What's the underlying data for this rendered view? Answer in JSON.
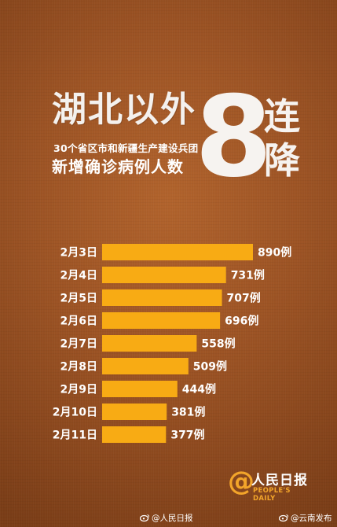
{
  "headline": "湖北以外",
  "subline1": "30个省区市和新疆生产建设兵团",
  "subline2": "新增确诊病例人数",
  "big_number": "8",
  "big_suffix_1": "连",
  "big_suffix_2": "降",
  "brand": {
    "symbol": "@",
    "name_cn": "人民日报",
    "name_en": "PEOPLE'S DAILY"
  },
  "footer": {
    "weibo_1": "@人民日报",
    "weibo_2": "@云南发布"
  },
  "colors": {
    "bar": "#f8ab14",
    "background": "#9c5324"
  },
  "chart_data": {
    "type": "bar",
    "orientation": "horizontal",
    "categories": [
      "2月3日",
      "2月4日",
      "2月5日",
      "2月6日",
      "2月7日",
      "2月8日",
      "2月9日",
      "2月10日",
      "2月11日"
    ],
    "values": [
      890,
      731,
      707,
      696,
      558,
      509,
      444,
      381,
      377
    ],
    "value_labels": [
      "890例",
      "731例",
      "707例",
      "696例",
      "558例",
      "509例",
      "444例",
      "381例",
      "377例"
    ],
    "title": "",
    "xlabel": "",
    "ylabel": "",
    "grid": false,
    "legend": "none"
  }
}
